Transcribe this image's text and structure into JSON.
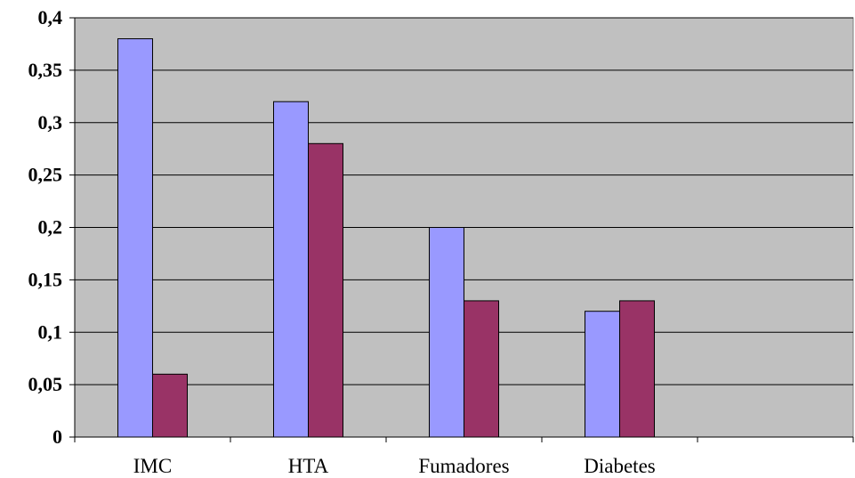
{
  "chart_data": {
    "type": "bar",
    "categories": [
      "IMC",
      "HTA",
      "Fumadores",
      "Diabetes",
      ""
    ],
    "series": [
      {
        "values": [
          0.38,
          0.32,
          0.2,
          0.12,
          null
        ],
        "color": "#9999ff"
      },
      {
        "values": [
          0.06,
          0.28,
          0.13,
          0.13,
          null
        ],
        "color": "#993366"
      }
    ],
    "ylim": [
      0,
      0.4
    ],
    "y_ticks": [
      "0",
      "0,05",
      "0,1",
      "0,15",
      "0,2",
      "0,25",
      "0,3",
      "0,35",
      "0,4"
    ],
    "grid": true,
    "legend": "none",
    "plot_background": "#c0c0c0"
  }
}
